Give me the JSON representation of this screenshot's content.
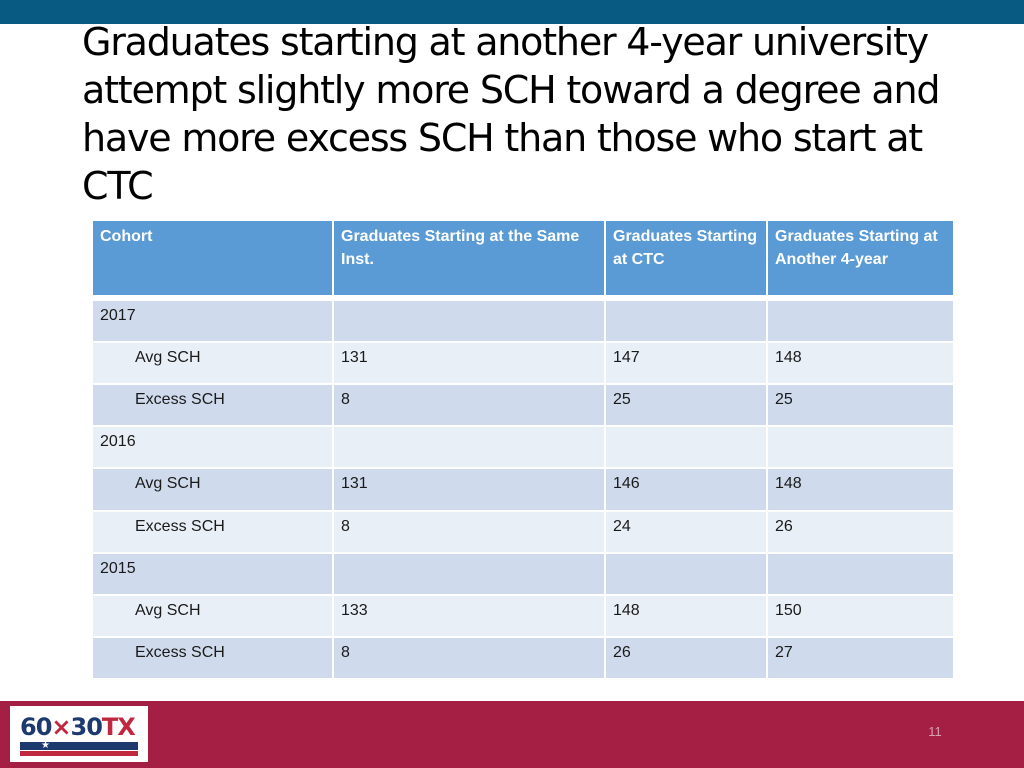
{
  "title": "Graduates starting at another 4-year university attempt slightly more SCH toward a degree and have more excess SCH than those who start at CTC",
  "table": {
    "headers": [
      "Cohort",
      "Graduates Starting at the Same  Inst.",
      "Graduates Starting at CTC",
      "Graduates Starting at Another 4-year"
    ],
    "groups": [
      {
        "year": "2017",
        "rows": [
          {
            "label": "Avg SCH",
            "values": [
              "131",
              "147",
              "148"
            ]
          },
          {
            "label": "Excess SCH",
            "values": [
              "8",
              "25",
              "25"
            ]
          }
        ]
      },
      {
        "year": "2016",
        "rows": [
          {
            "label": "Avg SCH",
            "values": [
              "131",
              "146",
              "148"
            ]
          },
          {
            "label": "Excess SCH",
            "values": [
              "8",
              "24",
              "26"
            ]
          }
        ]
      },
      {
        "year": "2015",
        "rows": [
          {
            "label": "Avg SCH",
            "values": [
              "133",
              "148",
              "150"
            ]
          },
          {
            "label": "Excess SCH",
            "values": [
              "8",
              "26",
              "27"
            ]
          }
        ]
      }
    ]
  },
  "footer": {
    "logo_text": "60x30TX",
    "page_number": "11"
  },
  "colors": {
    "top_bar": "#085a82",
    "header_fill": "#5b9bd5",
    "row_dark": "#cfdbec",
    "row_light": "#e9eff7",
    "footer_fill": "#a51e44"
  }
}
